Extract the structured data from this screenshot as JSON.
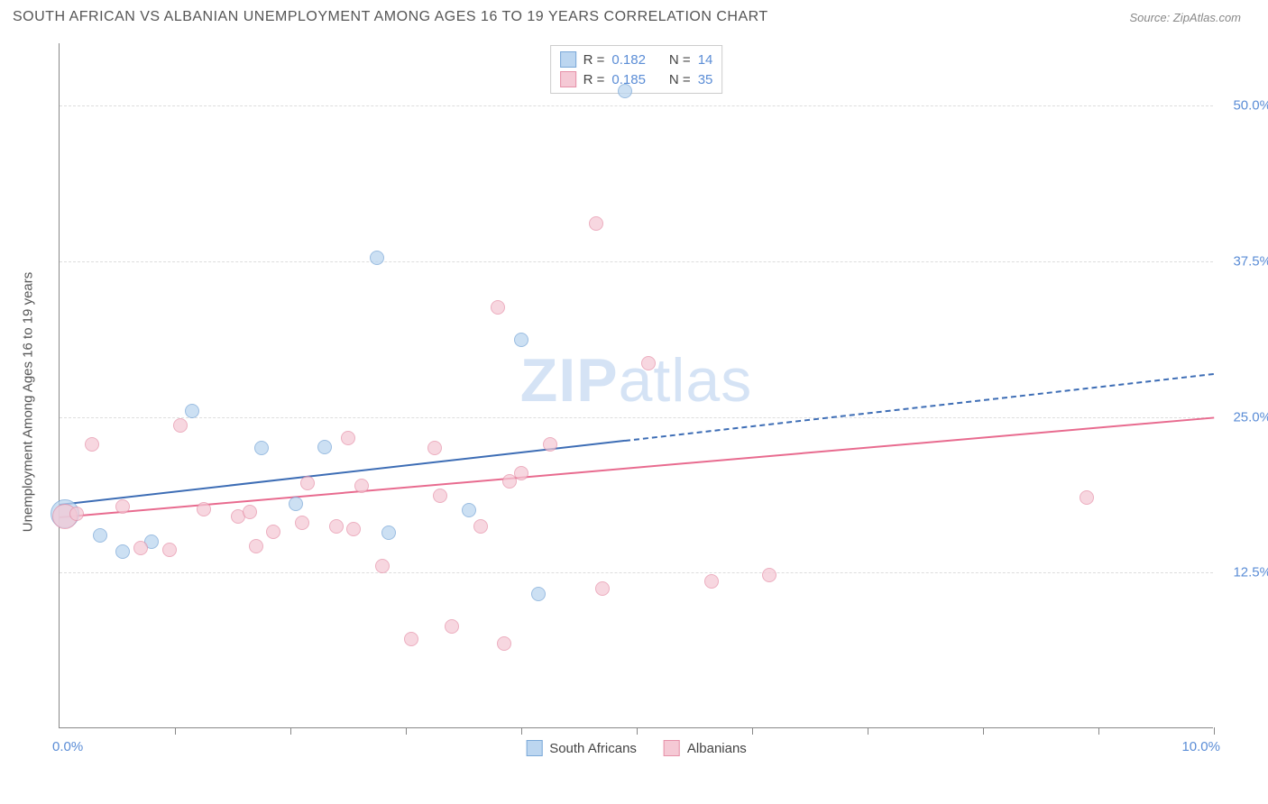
{
  "title": "SOUTH AFRICAN VS ALBANIAN UNEMPLOYMENT AMONG AGES 16 TO 19 YEARS CORRELATION CHART",
  "source": "Source: ZipAtlas.com",
  "ylabel": "Unemployment Among Ages 16 to 19 years",
  "watermark_bold": "ZIP",
  "watermark_rest": "atlas",
  "chart": {
    "type": "scatter",
    "xlim": [
      0,
      10
    ],
    "ylim": [
      0,
      55
    ],
    "x_label_min": "0.0%",
    "x_label_max": "10.0%",
    "xticks": [
      1,
      2,
      3,
      4,
      5,
      6,
      7,
      8,
      9,
      10
    ],
    "y_gridlines": [
      {
        "val": 50.0,
        "label": "50.0%"
      },
      {
        "val": 37.5,
        "label": "37.5%"
      },
      {
        "val": 25.0,
        "label": "25.0%"
      },
      {
        "val": 12.5,
        "label": "12.5%"
      }
    ],
    "background_color": "#ffffff",
    "grid_color": "#dddddd",
    "axis_color": "#888888",
    "label_color": "#5b8dd6",
    "point_radius": 8,
    "series": [
      {
        "name": "South Africans",
        "fill": "#bcd6f0",
        "stroke": "#7aa8d8",
        "opacity": 0.75,
        "points": [
          {
            "x": 0.05,
            "y": 17.2,
            "r": 16
          },
          {
            "x": 0.55,
            "y": 14.2
          },
          {
            "x": 0.35,
            "y": 15.5
          },
          {
            "x": 0.8,
            "y": 15.0
          },
          {
            "x": 1.15,
            "y": 25.5
          },
          {
            "x": 1.75,
            "y": 22.5
          },
          {
            "x": 2.05,
            "y": 18.0
          },
          {
            "x": 2.3,
            "y": 22.6
          },
          {
            "x": 2.75,
            "y": 37.8
          },
          {
            "x": 2.85,
            "y": 15.7
          },
          {
            "x": 3.55,
            "y": 17.5
          },
          {
            "x": 4.0,
            "y": 31.2
          },
          {
            "x": 4.15,
            "y": 10.8
          },
          {
            "x": 4.9,
            "y": 51.2
          }
        ],
        "trend": {
          "x1": 0.0,
          "y1": 18.0,
          "x2": 10.0,
          "y2": 28.5,
          "x_solid_end": 4.9,
          "color": "#3d6db5"
        }
      },
      {
        "name": "Albanians",
        "fill": "#f5c9d5",
        "stroke": "#e690a8",
        "opacity": 0.72,
        "points": [
          {
            "x": 0.05,
            "y": 17.0,
            "r": 14
          },
          {
            "x": 0.15,
            "y": 17.2
          },
          {
            "x": 0.28,
            "y": 22.8
          },
          {
            "x": 0.7,
            "y": 14.5
          },
          {
            "x": 0.55,
            "y": 17.8
          },
          {
            "x": 0.95,
            "y": 14.3
          },
          {
            "x": 1.05,
            "y": 24.3
          },
          {
            "x": 1.25,
            "y": 17.6
          },
          {
            "x": 1.55,
            "y": 17.0
          },
          {
            "x": 1.65,
            "y": 17.4
          },
          {
            "x": 1.85,
            "y": 15.8
          },
          {
            "x": 1.7,
            "y": 14.6
          },
          {
            "x": 2.1,
            "y": 16.5
          },
          {
            "x": 2.15,
            "y": 19.7
          },
          {
            "x": 2.4,
            "y": 16.2
          },
          {
            "x": 2.5,
            "y": 23.3
          },
          {
            "x": 2.55,
            "y": 16.0
          },
          {
            "x": 2.62,
            "y": 19.5
          },
          {
            "x": 2.8,
            "y": 13.0
          },
          {
            "x": 3.05,
            "y": 7.2
          },
          {
            "x": 3.25,
            "y": 22.5
          },
          {
            "x": 3.3,
            "y": 18.7
          },
          {
            "x": 3.4,
            "y": 8.2
          },
          {
            "x": 3.65,
            "y": 16.2
          },
          {
            "x": 3.8,
            "y": 33.8
          },
          {
            "x": 3.85,
            "y": 6.8
          },
          {
            "x": 3.9,
            "y": 19.8
          },
          {
            "x": 4.0,
            "y": 20.5
          },
          {
            "x": 4.25,
            "y": 22.8
          },
          {
            "x": 4.65,
            "y": 40.5
          },
          {
            "x": 4.7,
            "y": 11.2
          },
          {
            "x": 5.1,
            "y": 29.3
          },
          {
            "x": 5.65,
            "y": 11.8
          },
          {
            "x": 6.15,
            "y": 12.3
          },
          {
            "x": 8.9,
            "y": 18.5
          }
        ],
        "trend": {
          "x1": 0.0,
          "y1": 17.0,
          "x2": 10.0,
          "y2": 25.0,
          "x_solid_end": 10.0,
          "color": "#e86b8f"
        }
      }
    ],
    "legend": {
      "rows": [
        {
          "swatch_fill": "#bcd6f0",
          "swatch_stroke": "#7aa8d8",
          "r_label": "R =",
          "r_val": "0.182",
          "n_label": "N =",
          "n_val": "14"
        },
        {
          "swatch_fill": "#f5c9d5",
          "swatch_stroke": "#e690a8",
          "r_label": "R =",
          "r_val": "0.185",
          "n_label": "N =",
          "n_val": "35"
        }
      ]
    },
    "bottom_legend": [
      {
        "swatch_fill": "#bcd6f0",
        "swatch_stroke": "#7aa8d8",
        "label": "South Africans"
      },
      {
        "swatch_fill": "#f5c9d5",
        "swatch_stroke": "#e690a8",
        "label": "Albanians"
      }
    ]
  }
}
